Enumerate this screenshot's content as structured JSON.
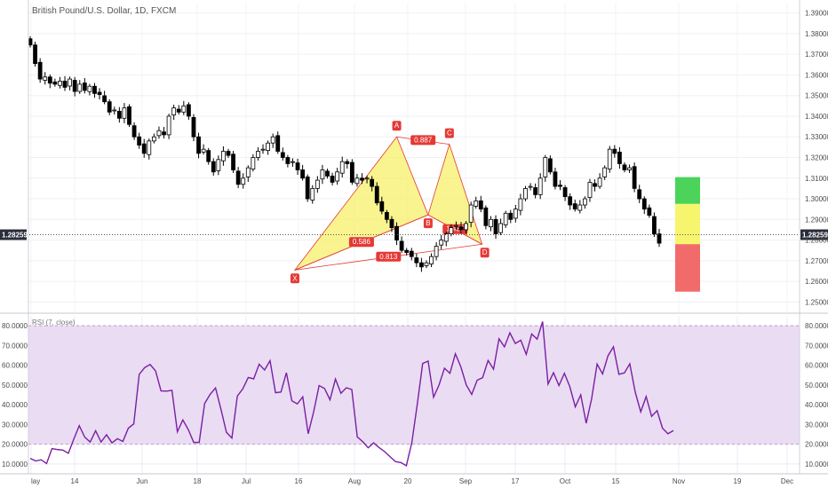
{
  "header": {
    "title": "British Pound/U.S. Dollar, 1D, FXCM"
  },
  "price_panel": {
    "y_ticks": [
      "1.39000",
      "1.38000",
      "1.37000",
      "1.36000",
      "1.35000",
      "1.34000",
      "1.33000",
      "1.32000",
      "1.31000",
      "1.30000",
      "1.29000",
      "1.28000",
      "1.27000",
      "1.26000",
      "1.25000"
    ],
    "current_price": "1.28259"
  },
  "rsi_panel": {
    "title": "RSI (7, close)",
    "y_ticks": [
      "80.0000",
      "70.0000",
      "60.0000",
      "50.0000",
      "40.0000",
      "30.0000",
      "20.0000",
      "10.0000"
    ],
    "left_ticks": [
      "80.0000",
      "70.0000",
      "60.0000",
      "50.0000",
      "40.0000",
      "30.0000",
      "20.0000",
      "10.0000"
    ]
  },
  "x_axis": {
    "labels": [
      "lay",
      "14",
      "Jun",
      "18",
      "Jul",
      "16",
      "Aug",
      "20",
      "Sep",
      "17",
      "Oct",
      "15",
      "Nov",
      "19",
      "Dec"
    ]
  },
  "pattern": {
    "points": [
      {
        "name": "X",
        "x": 0.3456,
        "y": 1.2655
      },
      {
        "name": "A",
        "x": 0.4776,
        "y": 1.33
      },
      {
        "name": "B",
        "x": 0.5183,
        "y": 1.2922
      },
      {
        "name": "C",
        "x": 0.5459,
        "y": 1.3264
      },
      {
        "name": "D",
        "x": 0.5883,
        "y": 1.278
      }
    ],
    "ratios": [
      {
        "label": "0.887",
        "at": "A-C"
      },
      {
        "label": "0.586",
        "at": "X-B"
      },
      {
        "label": "1.437",
        "at": "B-D"
      },
      {
        "label": "0.813",
        "at": "X-D"
      }
    ],
    "colors": {
      "fill": "#f7f06a",
      "line": "#e53935",
      "label_bg": "#e53935"
    }
  },
  "trade_box": {
    "colors": {
      "tp2": "#4cd35a",
      "tp1": "#f7f56e",
      "sl": "#f26b6b"
    }
  },
  "chart_data": [
    {
      "type": "candlestick",
      "title": "British Pound/U.S. Dollar, 1D, FXCM",
      "xlabel": "",
      "ylabel": "",
      "ylim": [
        1.245,
        1.395
      ],
      "x_labels": [
        "lay",
        "14",
        "Jun",
        "18",
        "Jul",
        "16",
        "Aug",
        "20",
        "Sep",
        "17",
        "Oct",
        "15",
        "Nov",
        "19",
        "Dec"
      ],
      "series": [
        {
          "close": [
            1.3745,
            1.3655,
            1.358,
            1.359,
            1.356,
            1.3555,
            1.357,
            1.354,
            1.358,
            1.352,
            1.3555,
            1.3525,
            1.3545,
            1.351,
            1.3505,
            1.347,
            1.342,
            1.343,
            1.339,
            1.344,
            1.336,
            1.33,
            1.326,
            1.322,
            1.328,
            1.33,
            1.333,
            1.331,
            1.34,
            1.344,
            1.342,
            1.345,
            1.34,
            1.33,
            1.322,
            1.324,
            1.318,
            1.313,
            1.319,
            1.323,
            1.321,
            1.314,
            1.307,
            1.31,
            1.315,
            1.32,
            1.323,
            1.324,
            1.327,
            1.33,
            1.323,
            1.32,
            1.317,
            1.318,
            1.314,
            1.31,
            1.3,
            1.305,
            1.309,
            1.314,
            1.311,
            1.308,
            1.313,
            1.318,
            1.317,
            1.308,
            1.31,
            1.309,
            1.31,
            1.306,
            1.298,
            1.294,
            1.29,
            1.286,
            1.28,
            1.275,
            1.274,
            1.272,
            1.269,
            1.267,
            1.269,
            1.272,
            1.277,
            1.28,
            1.283,
            1.286,
            1.287,
            1.285,
            1.288,
            1.297,
            1.299,
            1.295,
            1.287,
            1.29,
            1.283,
            1.288,
            1.293,
            1.29,
            1.295,
            1.3,
            1.305,
            1.306,
            1.302,
            1.31,
            1.32,
            1.313,
            1.306,
            1.306,
            1.301,
            1.297,
            1.295,
            1.297,
            1.3,
            1.308,
            1.306,
            1.31,
            1.315,
            1.324,
            1.322,
            1.317,
            1.314,
            1.315,
            1.305,
            1.3,
            1.295,
            1.292,
            1.283,
            1.2785
          ]
        },
        {
          "name": "RSI",
          "values": [
            12.8,
            11.5,
            12.1,
            10.2,
            17.8,
            17.3,
            17.0,
            15.4,
            22.6,
            29.4,
            23.6,
            21.1,
            26.8,
            21.1,
            24.8,
            20.7,
            22.8,
            21.4,
            28.1,
            30.3,
            55.4,
            58.8,
            60.4,
            57.1,
            47.0,
            46.9,
            47.3,
            26.3,
            32.3,
            27.4,
            20.9,
            20.9,
            40.6,
            45.2,
            48.5,
            37.6,
            26.0,
            23.1,
            44.4,
            48.0,
            53.8,
            53.1,
            60.5,
            57.6,
            62.3,
            46.1,
            46.4,
            56.2,
            42.0,
            40.4,
            44.0,
            25.3,
            36.4,
            49.7,
            48.2,
            42.5,
            53.0,
            45.8,
            48.6,
            47.7,
            23.7,
            21.3,
            18.2,
            20.7,
            18.3,
            16.3,
            13.7,
            11.2,
            10.7,
            9.1,
            20.6,
            40.0,
            60.9,
            62.1,
            43.8,
            50.0,
            58.5,
            55.9,
            65.8,
            59.2,
            50.0,
            45.2,
            52.4,
            53.7,
            62.4,
            58.0,
            73.4,
            69.3,
            76.4,
            71.0,
            72.7,
            65.5,
            75.8,
            73.2,
            82.1,
            50.5,
            56.2,
            49.7,
            55.9,
            49.1,
            38.9,
            45.0,
            30.6,
            43.1,
            60.6,
            55.6,
            64.8,
            69.3,
            55.4,
            56.1,
            60.7,
            46.3,
            36.4,
            44.1,
            34.1,
            37.0,
            28.1,
            25.3,
            26.9
          ]
        }
      ]
    }
  ]
}
